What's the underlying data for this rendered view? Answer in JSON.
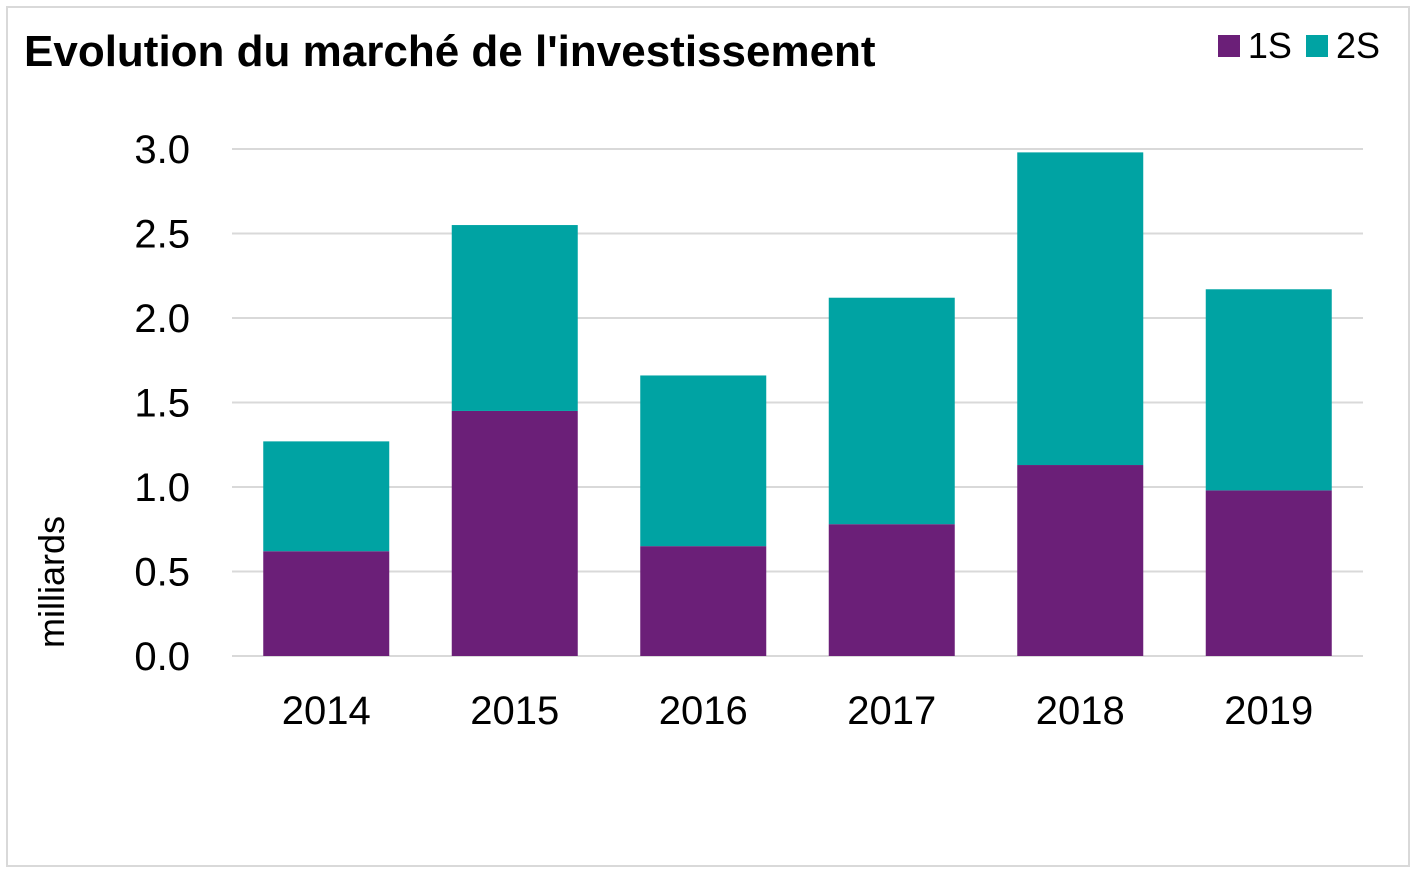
{
  "chart_data": {
    "type": "bar",
    "stacked": true,
    "title": "Evolution du marché de l'investissement",
    "xlabel": "",
    "ylabel": "milliards",
    "categories": [
      "2014",
      "2015",
      "2016",
      "2017",
      "2018",
      "2019"
    ],
    "series": [
      {
        "name": "1S",
        "color": "#6b1f78",
        "values": [
          0.62,
          1.45,
          0.65,
          0.78,
          1.13,
          0.98
        ]
      },
      {
        "name": "2S",
        "color": "#00a3a3",
        "values": [
          0.65,
          1.1,
          1.01,
          1.34,
          1.85,
          1.19
        ]
      }
    ],
    "ylim": [
      0,
      3.0
    ],
    "yticks": [
      "0.0",
      "0.5",
      "1.0",
      "1.5",
      "2.0",
      "2.5",
      "3.0"
    ],
    "grid": true,
    "legend_position": "top-right"
  }
}
